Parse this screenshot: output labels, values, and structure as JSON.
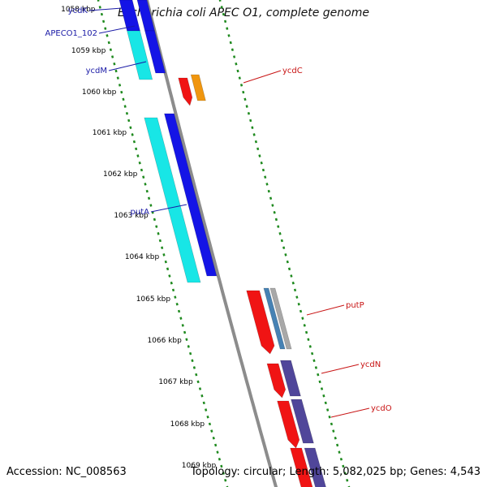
{
  "title": "Escherichia coli APEC O1, complete genome",
  "footer": {
    "accession": "Accession: NC_008563",
    "summary": "Topology: circular; Length: 5,082,025 bp; Genes: 4,543"
  },
  "colors": {
    "backbone": "#8c8c8c",
    "tick": "#1f8a1f",
    "left_label": "#1a1aa6",
    "right_label": "#c81414",
    "cyan": "#18e6e6",
    "blue": "#1414e6",
    "red": "#f01414",
    "orange": "#f0960f",
    "purple": "#50469a",
    "steel": "#4682b4",
    "grey": "#a8a8a8"
  },
  "kbp_ticks": [
    "1058 kbp",
    "1059 kbp",
    "1060 kbp",
    "1061 kbp",
    "1062 kbp",
    "1063 kbp",
    "1064 kbp",
    "1065 kbp",
    "1066 kbp",
    "1067 kbp",
    "1068 kbp",
    "1069 kbp"
  ],
  "genes_left": [
    {
      "name": "ycdK",
      "color": "cyan"
    },
    {
      "name": "APECO1_102",
      "color": "blue"
    },
    {
      "name": "ycdM",
      "color": "cyan"
    },
    {
      "name": "putA",
      "color": "cyan"
    }
  ],
  "genes_right": [
    {
      "name": "ycdC",
      "color": "red"
    },
    {
      "name": "putP",
      "color": "red"
    },
    {
      "name": "ycdN",
      "color": "red"
    },
    {
      "name": "ycdO",
      "color": "red"
    }
  ]
}
